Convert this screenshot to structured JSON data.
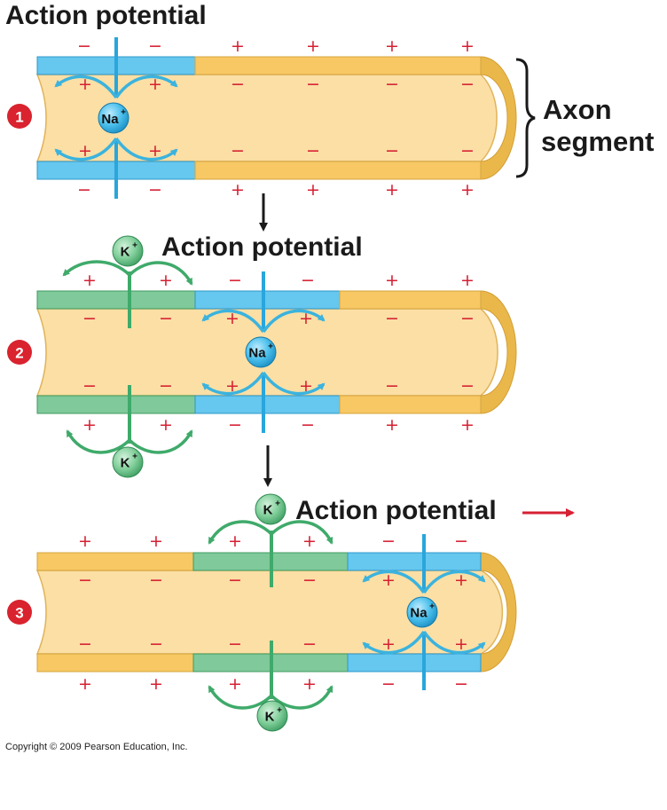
{
  "titles": {
    "action_potential_1": "Action potential",
    "action_potential_2": "Action potential",
    "action_potential_3": "Action potential"
  },
  "axon_label": {
    "line1": "Axon",
    "line2": "segment"
  },
  "steps": {
    "step1": "1",
    "step2": "2",
    "step3": "3"
  },
  "ions": {
    "sodium_base": "Na",
    "potassium_base": "K",
    "charge_sup": "+"
  },
  "charges": {
    "plus": "+",
    "minus": "−"
  },
  "copyright": "Copyright © 2009 Pearson Education, Inc.",
  "colors": {
    "axon_fill": "#fbdfa5",
    "resting_membrane": "#f7c864",
    "depolarized_membrane": "#66c7ef",
    "repolarized_membrane": "#7fc99a",
    "na_arrow": "#3bb3de",
    "k_arrow": "#3faa6a",
    "charge": "#d62033",
    "step_badge": "#d9232e",
    "propagation_arrow": "#d62033"
  }
}
